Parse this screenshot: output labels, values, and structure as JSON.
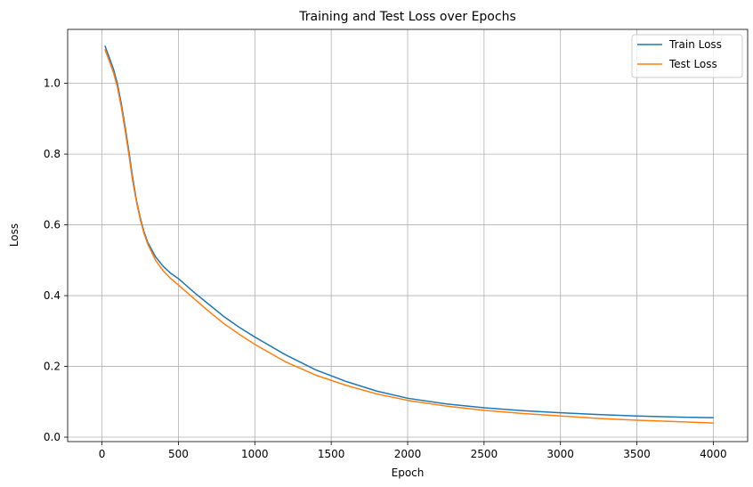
{
  "chart_data": {
    "type": "line",
    "title": "Training and Test Loss over Epochs",
    "xlabel": "Epoch",
    "ylabel": "Loss",
    "xlim": [
      -225,
      4225
    ],
    "ylim": [
      -0.0125,
      1.1525
    ],
    "xticks": [
      0,
      500,
      1000,
      1500,
      2000,
      2500,
      3000,
      3500,
      4000
    ],
    "xtick_labels": [
      "0",
      "500",
      "1000",
      "1500",
      "2000",
      "2500",
      "3000",
      "3500",
      "4000"
    ],
    "yticks": [
      0.0,
      0.2,
      0.4,
      0.6,
      0.8,
      1.0
    ],
    "ytick_labels": [
      "0.0",
      "0.2",
      "0.4",
      "0.6",
      "0.8",
      "1.0"
    ],
    "grid": true,
    "legend_position": "top-right",
    "x": [
      20,
      50,
      75,
      100,
      125,
      150,
      175,
      200,
      225,
      250,
      275,
      300,
      350,
      400,
      450,
      500,
      600,
      700,
      800,
      900,
      1000,
      1200,
      1400,
      1600,
      1800,
      2000,
      2250,
      2500,
      2750,
      3000,
      3250,
      3500,
      3750,
      4000
    ],
    "series": [
      {
        "name": "Train Loss",
        "color": "#1f77b4",
        "values": [
          1.105,
          1.07,
          1.04,
          1.0,
          0.945,
          0.88,
          0.81,
          0.735,
          0.67,
          0.62,
          0.58,
          0.55,
          0.51,
          0.483,
          0.463,
          0.448,
          0.41,
          0.375,
          0.34,
          0.31,
          0.283,
          0.233,
          0.19,
          0.157,
          0.13,
          0.11,
          0.094,
          0.083,
          0.075,
          0.069,
          0.064,
          0.06,
          0.057,
          0.055
        ]
      },
      {
        "name": "Test Loss",
        "color": "#ff7f0e",
        "values": [
          1.095,
          1.06,
          1.03,
          0.99,
          0.935,
          0.87,
          0.8,
          0.725,
          0.665,
          0.615,
          0.575,
          0.545,
          0.5,
          0.47,
          0.448,
          0.43,
          0.392,
          0.355,
          0.32,
          0.29,
          0.262,
          0.213,
          0.175,
          0.146,
          0.122,
          0.104,
          0.088,
          0.076,
          0.067,
          0.06,
          0.053,
          0.048,
          0.044,
          0.04
        ]
      }
    ]
  }
}
